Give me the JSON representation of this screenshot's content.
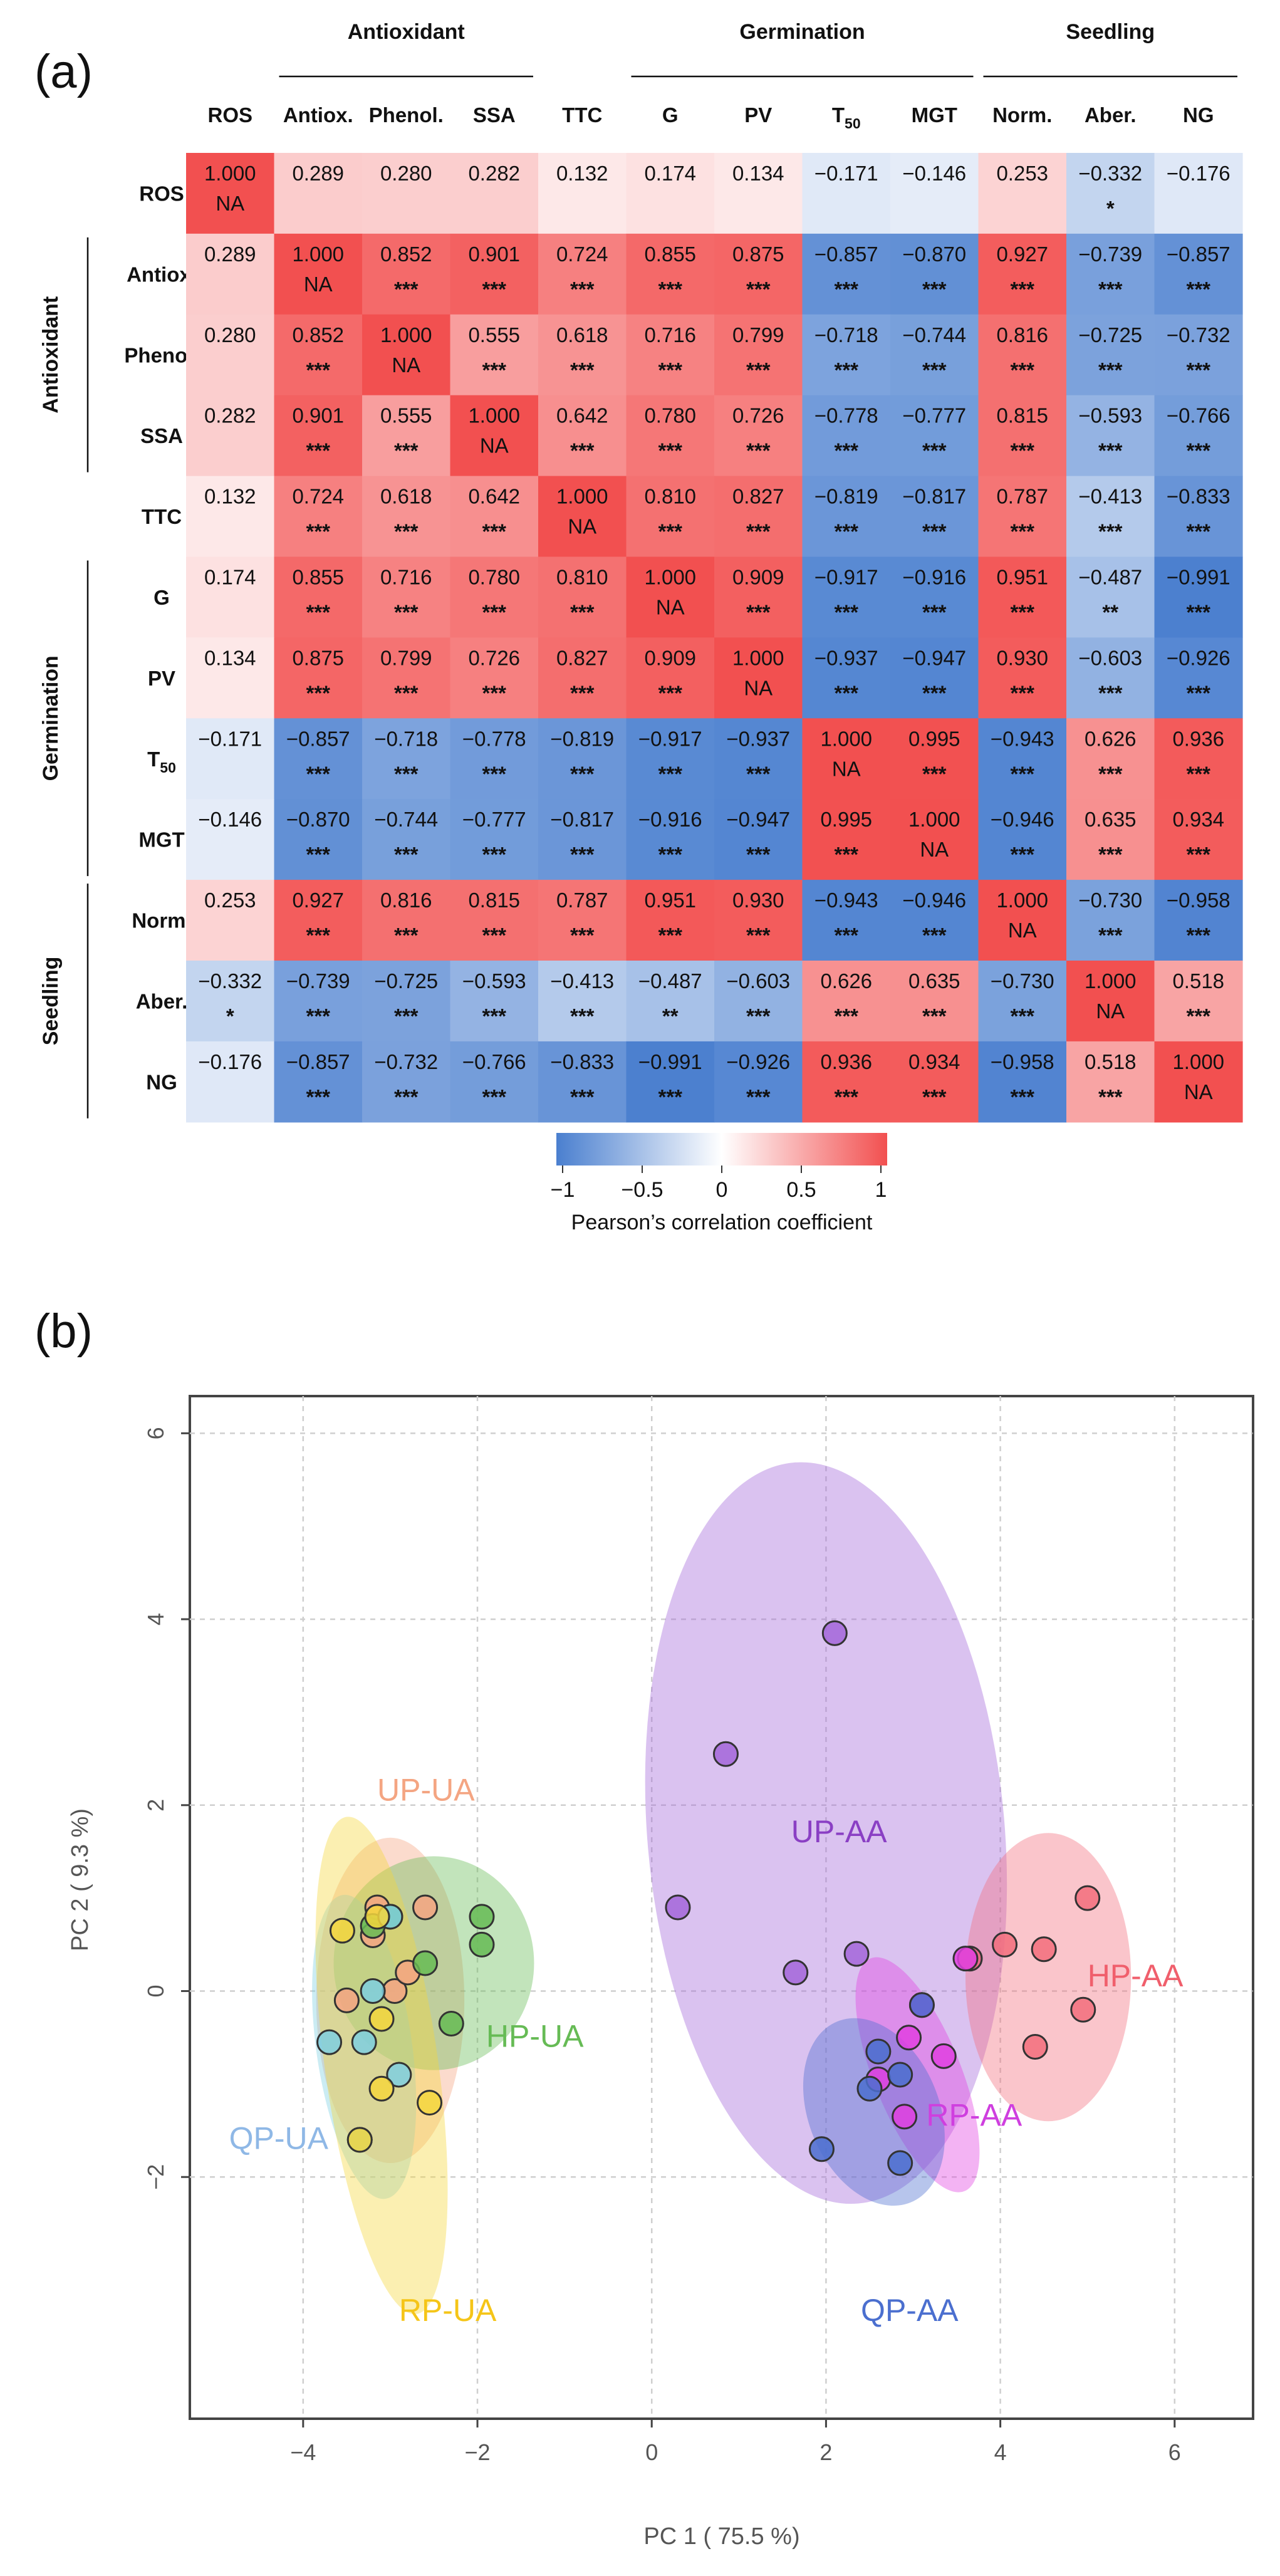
{
  "panels": {
    "a": "(a)",
    "b": "(b)"
  },
  "heatmap": {
    "columns": [
      "ROS",
      "Antiox.",
      "Phenol.",
      "SSA",
      "TTC",
      "G",
      "PV",
      "T50",
      "MGT",
      "Norm.",
      "Aber.",
      "NG"
    ],
    "rows": [
      "ROS",
      "Antiox.",
      "Phenol.",
      "SSA",
      "TTC",
      "G",
      "PV",
      "T50",
      "MGT",
      "Norm.",
      "Aber.",
      "NG"
    ],
    "column_groups": [
      {
        "label": "Antioxidant",
        "from": 1,
        "to": 3
      },
      {
        "label": "Germination",
        "from": 5,
        "to": 8
      },
      {
        "label": "Seedling",
        "from": 9,
        "to": 11
      }
    ],
    "row_groups": [
      {
        "label": "Antioxidant",
        "from": 1,
        "to": 3
      },
      {
        "label": "Germination",
        "from": 5,
        "to": 8
      },
      {
        "label": "Seedling",
        "from": 9,
        "to": 11
      }
    ],
    "values": [
      [
        1.0,
        0.289,
        0.28,
        0.282,
        0.132,
        0.174,
        0.134,
        -0.171,
        -0.146,
        0.253,
        -0.332,
        -0.176
      ],
      [
        0.289,
        1.0,
        0.852,
        0.901,
        0.724,
        0.855,
        0.875,
        -0.857,
        -0.87,
        0.927,
        -0.739,
        -0.857
      ],
      [
        0.28,
        0.852,
        1.0,
        0.555,
        0.618,
        0.716,
        0.799,
        -0.718,
        -0.744,
        0.816,
        -0.725,
        -0.732
      ],
      [
        0.282,
        0.901,
        0.555,
        1.0,
        0.642,
        0.78,
        0.726,
        -0.778,
        -0.777,
        0.815,
        -0.593,
        -0.766
      ],
      [
        0.132,
        0.724,
        0.618,
        0.642,
        1.0,
        0.81,
        0.827,
        -0.819,
        -0.817,
        0.787,
        -0.413,
        -0.833
      ],
      [
        0.174,
        0.855,
        0.716,
        0.78,
        0.81,
        1.0,
        0.909,
        -0.917,
        -0.916,
        0.951,
        -0.487,
        -0.991
      ],
      [
        0.134,
        0.875,
        0.799,
        0.726,
        0.827,
        0.909,
        1.0,
        -0.937,
        -0.947,
        0.93,
        -0.603,
        -0.926
      ],
      [
        -0.171,
        -0.857,
        -0.718,
        -0.778,
        -0.819,
        -0.917,
        -0.937,
        1.0,
        0.995,
        -0.943,
        0.626,
        0.936
      ],
      [
        -0.146,
        -0.87,
        -0.744,
        -0.777,
        -0.817,
        -0.916,
        -0.947,
        0.995,
        1.0,
        -0.946,
        0.635,
        0.934
      ],
      [
        0.253,
        0.927,
        0.816,
        0.815,
        0.787,
        0.951,
        0.93,
        -0.943,
        -0.946,
        1.0,
        -0.73,
        -0.958
      ],
      [
        -0.332,
        -0.739,
        -0.725,
        -0.593,
        -0.413,
        -0.487,
        -0.603,
        0.626,
        0.635,
        -0.73,
        1.0,
        0.518
      ],
      [
        -0.176,
        -0.857,
        -0.732,
        -0.766,
        -0.833,
        -0.991,
        -0.926,
        0.936,
        0.934,
        -0.958,
        0.518,
        1.0
      ]
    ],
    "significance": [
      [
        "NA",
        "",
        "",
        "",
        "",
        "",
        "",
        "",
        "",
        "",
        "*",
        ""
      ],
      [
        "",
        "NA",
        "***",
        "***",
        "***",
        "***",
        "***",
        "***",
        "***",
        "***",
        "***",
        "***"
      ],
      [
        "",
        "***",
        "NA",
        "***",
        "***",
        "***",
        "***",
        "***",
        "***",
        "***",
        "***",
        "***"
      ],
      [
        "",
        "***",
        "***",
        "NA",
        "***",
        "***",
        "***",
        "***",
        "***",
        "***",
        "***",
        "***"
      ],
      [
        "",
        "***",
        "***",
        "***",
        "NA",
        "***",
        "***",
        "***",
        "***",
        "***",
        "***",
        "***"
      ],
      [
        "",
        "***",
        "***",
        "***",
        "***",
        "NA",
        "***",
        "***",
        "***",
        "***",
        "**",
        "***"
      ],
      [
        "",
        "***",
        "***",
        "***",
        "***",
        "***",
        "NA",
        "***",
        "***",
        "***",
        "***",
        "***"
      ],
      [
        "",
        "***",
        "***",
        "***",
        "***",
        "***",
        "***",
        "NA",
        "***",
        "***",
        "***",
        "***"
      ],
      [
        "",
        "***",
        "***",
        "***",
        "***",
        "***",
        "***",
        "***",
        "NA",
        "***",
        "***",
        "***"
      ],
      [
        "",
        "***",
        "***",
        "***",
        "***",
        "***",
        "***",
        "***",
        "***",
        "NA",
        "***",
        "***"
      ],
      [
        "*",
        "***",
        "***",
        "***",
        "***",
        "**",
        "***",
        "***",
        "***",
        "***",
        "NA",
        "***"
      ],
      [
        "",
        "***",
        "***",
        "***",
        "***",
        "***",
        "***",
        "***",
        "***",
        "***",
        "***",
        "NA"
      ]
    ],
    "colorbar": {
      "ticks": [
        "−1",
        "−0.5",
        "0",
        "0.5",
        "1"
      ],
      "label": "Pearson’s correlation coefficient",
      "low_color": "#4a7fcf",
      "mid_color": "#ffffff",
      "high_color": "#f25050"
    }
  },
  "chart_data": {
    "type": "scatter",
    "xlabel": "PC 1 ( 75.5 %)",
    "ylabel": "PC 2 ( 9.3 %)",
    "xlim": [
      -5.3,
      6.9
    ],
    "ylim": [
      -4.6,
      6.4
    ],
    "xticks": [
      -4,
      -2,
      0,
      2,
      4,
      6
    ],
    "yticks": [
      -2,
      0,
      2,
      4,
      6
    ],
    "xtick_labels": [
      "−4",
      "−2",
      "0",
      "2",
      "4",
      "6"
    ],
    "ytick_labels": [
      "−2",
      "0",
      "2",
      "4",
      "6"
    ],
    "grid": true,
    "series": [
      {
        "name": "UP-UA",
        "color": "#f4a582",
        "ellipse": {
          "cx": -3.0,
          "cy": -0.1,
          "rx": 0.85,
          "ry": 1.75,
          "angle": 0
        },
        "points": [
          [
            -2.6,
            0.9
          ],
          [
            -2.95,
            0.0
          ],
          [
            -3.15,
            0.9
          ],
          [
            -2.8,
            0.2
          ],
          [
            -3.5,
            -0.1
          ],
          [
            -3.2,
            0.6
          ]
        ]
      },
      {
        "name": "HP-UA",
        "color": "#66bb55",
        "ellipse": {
          "cx": -2.5,
          "cy": 0.3,
          "rx": 1.15,
          "ry": 1.15,
          "angle": 0
        },
        "points": [
          [
            -1.95,
            0.8
          ],
          [
            -1.95,
            0.5
          ],
          [
            -2.6,
            0.3
          ],
          [
            -2.3,
            -0.35
          ],
          [
            -3.2,
            0.7
          ],
          [
            -3.0,
            0.8
          ]
        ]
      },
      {
        "name": "QP-UA",
        "color": "#7ecfe0",
        "ellipse": {
          "cx": -3.3,
          "cy": -0.6,
          "rx": 0.55,
          "ry": 1.65,
          "angle": -8
        },
        "points": [
          [
            -3.7,
            -0.55
          ],
          [
            -3.3,
            -0.55
          ],
          [
            -3.0,
            0.8
          ],
          [
            -3.2,
            0.0
          ],
          [
            -2.9,
            -0.9
          ],
          [
            -3.35,
            -1.6
          ]
        ]
      },
      {
        "name": "RP-UA",
        "color": "#f5d63d",
        "ellipse": {
          "cx": -3.1,
          "cy": -0.8,
          "rx": 0.65,
          "ry": 2.7,
          "angle": -8
        },
        "points": [
          [
            -3.55,
            0.65
          ],
          [
            -3.1,
            -0.3
          ],
          [
            -3.1,
            -1.05
          ],
          [
            -2.55,
            -1.2
          ],
          [
            -3.35,
            -1.6
          ],
          [
            -3.15,
            0.8
          ]
        ]
      },
      {
        "name": "UP-AA",
        "color": "#a366d9",
        "ellipse": {
          "cx": 2.0,
          "cy": 1.7,
          "rx": 2.05,
          "ry": 4.0,
          "angle": -5
        },
        "points": [
          [
            2.1,
            3.85
          ],
          [
            0.85,
            2.55
          ],
          [
            0.3,
            0.9
          ],
          [
            1.65,
            0.2
          ],
          [
            2.35,
            0.4
          ],
          [
            3.65,
            0.35
          ]
        ]
      },
      {
        "name": "HP-AA",
        "color": "#f26d7d",
        "ellipse": {
          "cx": 4.55,
          "cy": 0.15,
          "rx": 0.95,
          "ry": 1.55,
          "angle": 0
        },
        "points": [
          [
            5.0,
            1.0
          ],
          [
            4.05,
            0.5
          ],
          [
            4.5,
            0.45
          ],
          [
            4.95,
            -0.2
          ],
          [
            4.4,
            -0.6
          ],
          [
            3.65,
            0.35
          ]
        ]
      },
      {
        "name": "RP-AA",
        "color": "#e040e0",
        "ellipse": {
          "cx": 3.05,
          "cy": -0.9,
          "rx": 0.5,
          "ry": 1.35,
          "angle": -22
        },
        "points": [
          [
            3.1,
            -0.15
          ],
          [
            2.95,
            -0.5
          ],
          [
            3.35,
            -0.7
          ],
          [
            2.9,
            -1.35
          ],
          [
            2.6,
            -0.95
          ],
          [
            3.6,
            0.35
          ]
        ]
      },
      {
        "name": "QP-AA",
        "color": "#4b6fcf",
        "ellipse": {
          "cx": 2.55,
          "cy": -1.3,
          "rx": 0.75,
          "ry": 1.05,
          "angle": -22
        },
        "points": [
          [
            2.6,
            -0.65
          ],
          [
            2.85,
            -0.9
          ],
          [
            2.5,
            -1.05
          ],
          [
            1.95,
            -1.7
          ],
          [
            2.85,
            -1.85
          ],
          [
            3.1,
            -0.15
          ]
        ]
      }
    ],
    "labels": [
      {
        "text": "UP-UA",
        "x": -3.15,
        "y": 2.05,
        "color": "#f4a582"
      },
      {
        "text": "HP-UA",
        "x": -1.9,
        "y": -0.6,
        "color": "#66bb55"
      },
      {
        "text": "QP-UA",
        "x": -4.85,
        "y": -1.7,
        "color": "#8fb8e6"
      },
      {
        "text": "RP-UA",
        "x": -2.9,
        "y": -3.55,
        "color": "#f5c518"
      },
      {
        "text": "UP-AA",
        "x": 1.6,
        "y": 1.6,
        "color": "#8a3fc4"
      },
      {
        "text": "HP-AA",
        "x": 5.0,
        "y": 0.05,
        "color": "#f05f6c"
      },
      {
        "text": "RP-AA",
        "x": 3.15,
        "y": -1.45,
        "color": "#cf3fdf"
      },
      {
        "text": "QP-AA",
        "x": 2.4,
        "y": -3.55,
        "color": "#4b6fcf"
      }
    ]
  }
}
